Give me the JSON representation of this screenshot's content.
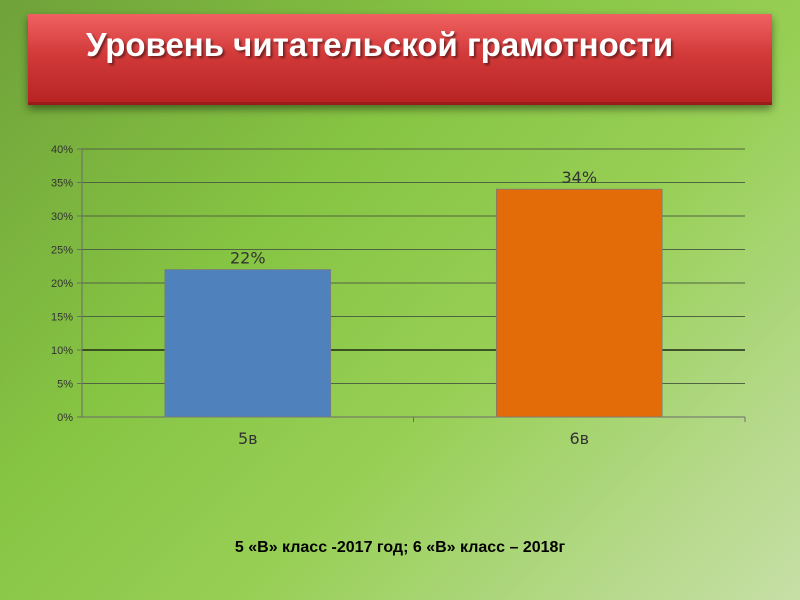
{
  "title": "Уровень читательской грамотности",
  "caption": "5 «В» класс -2017 год; 6 «В» класс – 2018г",
  "chart_data": {
    "type": "bar",
    "categories": [
      "5в",
      "6в"
    ],
    "values": [
      22,
      34
    ],
    "data_labels": [
      "22%",
      "34%"
    ],
    "bar_colors": [
      "#4f81bd",
      "#e36c09"
    ],
    "yticks": [
      "0%",
      "5%",
      "10%",
      "15%",
      "20%",
      "25%",
      "30%",
      "35%",
      "40%"
    ],
    "ylim": [
      0,
      40
    ],
    "ystep": 5,
    "grid": true,
    "legend": "none"
  }
}
